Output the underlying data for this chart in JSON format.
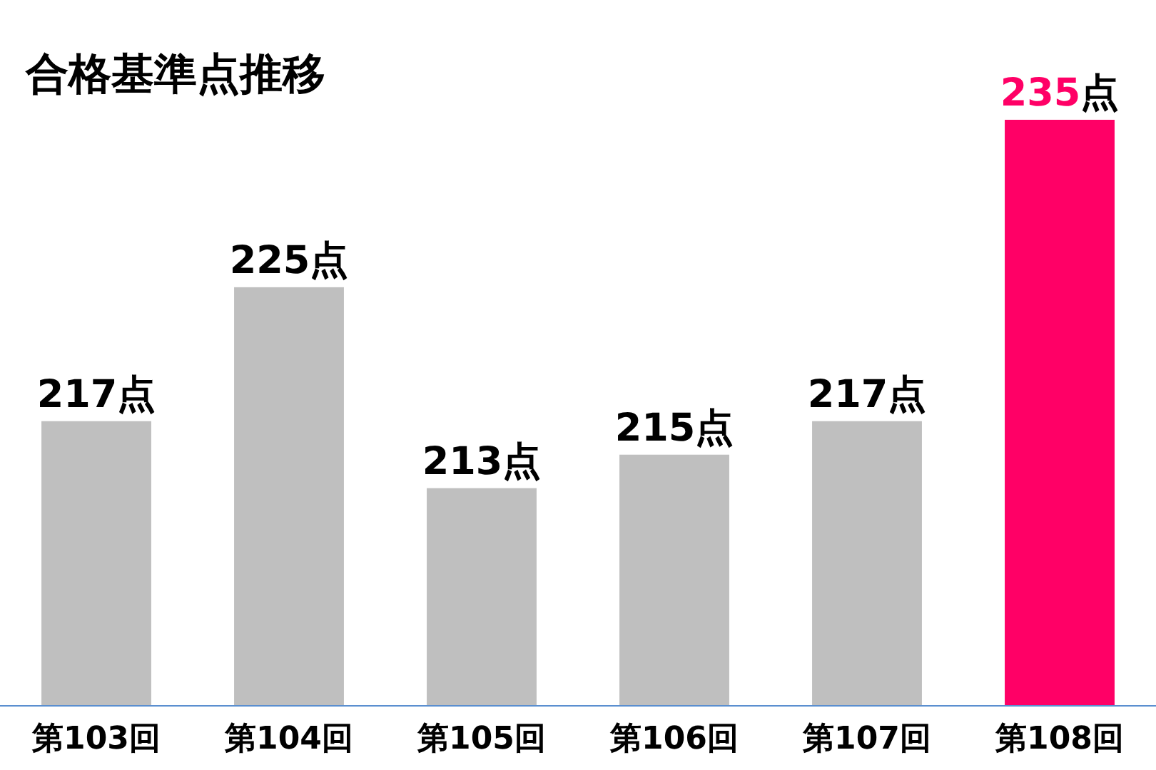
{
  "chart_data": {
    "type": "bar",
    "title": "合格基準点推移",
    "categories": [
      "第103回",
      "第104回",
      "第105回",
      "第106回",
      "第107回",
      "第108回"
    ],
    "values": [
      217,
      225,
      213,
      215,
      217,
      235
    ],
    "colors": [
      "#bfbfbf",
      "#bfbfbf",
      "#bfbfbf",
      "#bfbfbf",
      "#bfbfbf",
      "#ff0066"
    ],
    "value_labels": [
      "217点",
      "225点",
      "213点",
      "215点",
      "217点",
      "235点"
    ],
    "ylim": [
      200,
      235
    ]
  }
}
